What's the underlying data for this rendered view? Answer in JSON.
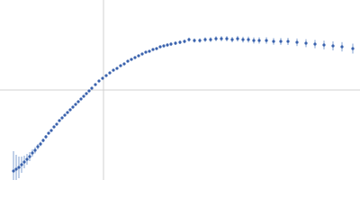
{
  "chart_data": {
    "type": "scatter",
    "x": [
      15,
      18,
      21,
      24,
      27,
      30,
      33,
      36,
      39,
      42,
      45,
      48,
      51,
      54,
      57,
      60,
      63,
      66,
      69,
      72,
      75,
      78,
      81,
      84,
      87,
      90,
      93,
      96,
      99,
      102,
      106,
      110,
      114,
      118,
      122,
      126,
      130,
      134,
      138,
      142,
      146,
      150,
      154,
      158,
      162,
      166,
      170,
      174,
      178,
      182,
      186,
      190,
      195,
      200,
      205,
      210,
      216,
      222,
      228,
      234,
      240,
      246,
      252,
      258,
      264,
      270,
      276,
      282,
      288,
      296,
      304,
      312,
      320,
      330,
      340,
      350,
      360,
      370,
      380,
      392
    ],
    "values": [
      10,
      12,
      14,
      17,
      20,
      23,
      26,
      30,
      33,
      37,
      40,
      44,
      48,
      52,
      55,
      59,
      62,
      66,
      69,
      72,
      75,
      78,
      81,
      84,
      87,
      90,
      93,
      96,
      99,
      102,
      106,
      110,
      113,
      116,
      119,
      122,
      124,
      127,
      129,
      132,
      134,
      136,
      138,
      140,
      142,
      143,
      145,
      146,
      148,
      149,
      150,
      151,
      152,
      153,
      154,
      156,
      155,
      155,
      156,
      156,
      157,
      157,
      157,
      156,
      157,
      156,
      156,
      155,
      155,
      155,
      154,
      154,
      154,
      153,
      152,
      151,
      150,
      149,
      148,
      146
    ],
    "errors": [
      22,
      16,
      12,
      9,
      7,
      6,
      5,
      4,
      3.5,
      3,
      2.5,
      2,
      2,
      1.5,
      1.5,
      1.2,
      1,
      1,
      1,
      1,
      1,
      1,
      1,
      1,
      1,
      1,
      1,
      1,
      1,
      1,
      1,
      1,
      1,
      1,
      1,
      1,
      1,
      1,
      1,
      1,
      1.2,
      1.2,
      1.2,
      1.3,
      1.3,
      1.4,
      1.5,
      1.5,
      1.6,
      1.7,
      1.8,
      1.9,
      2,
      2,
      2.1,
      2.2,
      2.3,
      2.4,
      2.5,
      2.6,
      2.7,
      2.8,
      2.9,
      3,
      3.1,
      3.2,
      3.3,
      3.4,
      3.5,
      3.6,
      3.7,
      3.8,
      4,
      4.2,
      4.4,
      4.6,
      4.8,
      5,
      5.2,
      5.5
    ],
    "color": "#3a62ad",
    "error_color": "#aac0e0",
    "xlim": [
      0,
      400
    ],
    "ylim": [
      0,
      200
    ],
    "reference_lines": {
      "x": 115,
      "y": 100
    },
    "reference_color": "#d0d0d0"
  }
}
